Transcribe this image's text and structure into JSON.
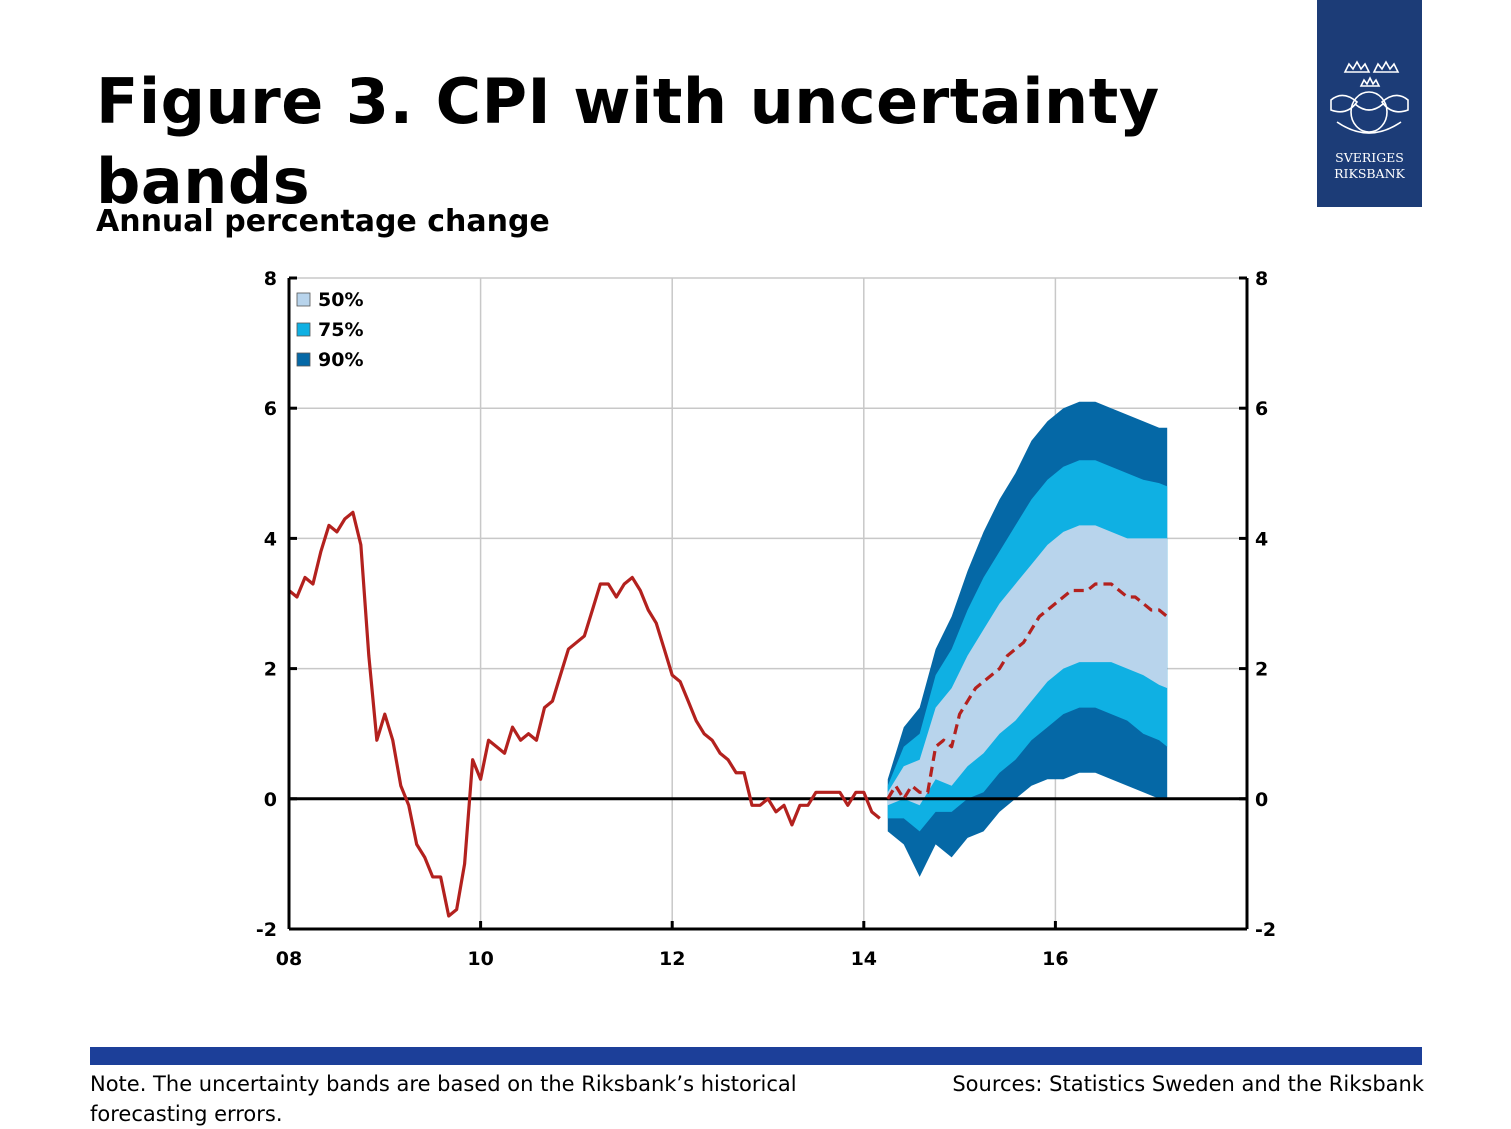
{
  "header": {
    "title": "Figure 3. CPI with uncertainty bands",
    "subtitle": "Annual percentage change"
  },
  "logo": {
    "line1": "SVERIGES",
    "line2": "RIKSBANK",
    "color": "#1c3c77"
  },
  "footer": {
    "note": "Note. The uncertainty bands are based on the Riksbank’s historical forecasting errors.",
    "sources": "Sources: Statistics Sweden and the Riksbank",
    "bar_color": "#1c3f99"
  },
  "chart_data": {
    "type": "area",
    "title": "",
    "xlabel": "",
    "ylabel": "",
    "xlim": [
      2008,
      2018
    ],
    "ylim": [
      -2,
      8
    ],
    "x_ticks": [
      2008,
      2010,
      2012,
      2014,
      2016
    ],
    "x_tick_labels": [
      "08",
      "10",
      "12",
      "14",
      "16"
    ],
    "y_ticks": [
      -2,
      0,
      2,
      4,
      6,
      8
    ],
    "y_tick_labels": [
      "-2",
      "0",
      "2",
      "4",
      "6",
      "8"
    ],
    "y_axis_right": true,
    "grid": true,
    "legend_position": "top-left",
    "legend": [
      {
        "label": "50%",
        "color": "#b8d4ec"
      },
      {
        "label": "75%",
        "color": "#0fb0e3"
      },
      {
        "label": "90%",
        "color": "#0568a6"
      }
    ],
    "series": [
      {
        "style": "solid",
        "color": "#b3211e",
        "x": [
          2008.0,
          2008.083,
          2008.167,
          2008.25,
          2008.333,
          2008.417,
          2008.5,
          2008.583,
          2008.667,
          2008.75,
          2008.833,
          2008.917,
          2009.0,
          2009.083,
          2009.167,
          2009.25,
          2009.333,
          2009.417,
          2009.5,
          2009.583,
          2009.667,
          2009.75,
          2009.833,
          2009.917,
          2010.0,
          2010.083,
          2010.167,
          2010.25,
          2010.333,
          2010.417,
          2010.5,
          2010.583,
          2010.667,
          2010.75,
          2010.833,
          2010.917,
          2011.0,
          2011.083,
          2011.167,
          2011.25,
          2011.333,
          2011.417,
          2011.5,
          2011.583,
          2011.667,
          2011.75,
          2011.833,
          2011.917,
          2012.0,
          2012.083,
          2012.167,
          2012.25,
          2012.333,
          2012.417,
          2012.5,
          2012.583,
          2012.667,
          2012.75,
          2012.833,
          2012.917,
          2013.0,
          2013.083,
          2013.167,
          2013.25,
          2013.333,
          2013.417,
          2013.5,
          2013.583,
          2013.667,
          2013.75,
          2013.833,
          2013.917,
          2014.0,
          2014.083,
          2014.167
        ],
        "y": [
          3.2,
          3.1,
          3.4,
          3.3,
          3.8,
          4.2,
          4.1,
          4.3,
          4.4,
          3.9,
          2.2,
          0.9,
          1.3,
          0.9,
          0.2,
          -0.1,
          -0.7,
          -0.9,
          -1.2,
          -1.2,
          -1.8,
          -1.7,
          -1.0,
          0.6,
          0.3,
          0.9,
          0.8,
          0.7,
          1.1,
          0.9,
          1.0,
          0.9,
          1.4,
          1.5,
          1.9,
          2.3,
          2.4,
          2.5,
          2.9,
          3.3,
          3.3,
          3.1,
          3.3,
          3.4,
          3.2,
          2.9,
          2.7,
          2.3,
          1.9,
          1.8,
          1.5,
          1.2,
          1.0,
          0.9,
          0.7,
          0.6,
          0.4,
          0.4,
          -0.1,
          -0.1,
          0.0,
          -0.2,
          -0.1,
          -0.4,
          -0.1,
          -0.1,
          0.1,
          0.1,
          0.1,
          0.1,
          -0.1,
          0.1,
          0.1,
          -0.2,
          -0.3
        ]
      },
      {
        "style": "dashed",
        "color": "#b3211e",
        "x": [
          2014.25,
          2014.333,
          2014.417,
          2014.5,
          2014.583,
          2014.667,
          2014.75,
          2014.833,
          2014.917,
          2015.0,
          2015.083,
          2015.167,
          2015.25,
          2015.333,
          2015.417,
          2015.5,
          2015.583,
          2015.667,
          2015.75,
          2015.833,
          2015.917,
          2016.0,
          2016.083,
          2016.167,
          2016.25,
          2016.333,
          2016.417,
          2016.5,
          2016.583,
          2016.667,
          2016.75,
          2016.833,
          2016.917,
          2017.0,
          2017.083,
          2017.167
        ],
        "y": [
          0.0,
          0.2,
          0.0,
          0.2,
          0.1,
          0.1,
          0.8,
          0.9,
          0.8,
          1.3,
          1.5,
          1.7,
          1.8,
          1.9,
          2.0,
          2.2,
          2.3,
          2.4,
          2.6,
          2.8,
          2.9,
          3.0,
          3.1,
          3.2,
          3.2,
          3.2,
          3.3,
          3.3,
          3.3,
          3.2,
          3.1,
          3.1,
          3.0,
          2.9,
          2.9,
          2.8
        ]
      }
    ],
    "bands": {
      "x": [
        2014.25,
        2014.417,
        2014.583,
        2014.75,
        2014.917,
        2015.083,
        2015.25,
        2015.417,
        2015.583,
        2015.75,
        2015.917,
        2016.083,
        2016.25,
        2016.417,
        2016.583,
        2016.75,
        2016.917,
        2017.083,
        2017.167
      ],
      "p90_upper": [
        0.3,
        1.1,
        1.4,
        2.3,
        2.8,
        3.5,
        4.1,
        4.6,
        5.0,
        5.5,
        5.8,
        6.0,
        6.1,
        6.1,
        6.0,
        5.9,
        5.8,
        5.7,
        5.7
      ],
      "p75_upper": [
        0.2,
        0.8,
        1.0,
        1.9,
        2.3,
        2.9,
        3.4,
        3.8,
        4.2,
        4.6,
        4.9,
        5.1,
        5.2,
        5.2,
        5.1,
        5.0,
        4.9,
        4.85,
        4.8
      ],
      "p50_upper": [
        0.1,
        0.5,
        0.6,
        1.4,
        1.7,
        2.2,
        2.6,
        3.0,
        3.3,
        3.6,
        3.9,
        4.1,
        4.2,
        4.2,
        4.1,
        4.0,
        4.0,
        4.0,
        4.0
      ],
      "p50_lower": [
        -0.1,
        0.0,
        -0.1,
        0.3,
        0.2,
        0.5,
        0.7,
        1.0,
        1.2,
        1.5,
        1.8,
        2.0,
        2.1,
        2.1,
        2.1,
        2.0,
        1.9,
        1.75,
        1.7
      ],
      "p75_lower": [
        -0.3,
        -0.3,
        -0.5,
        -0.2,
        -0.2,
        0.0,
        0.1,
        0.4,
        0.6,
        0.9,
        1.1,
        1.3,
        1.4,
        1.4,
        1.3,
        1.2,
        1.0,
        0.9,
        0.8
      ],
      "p90_lower": [
        -0.5,
        -0.7,
        -1.2,
        -0.7,
        -0.9,
        -0.6,
        -0.5,
        -0.2,
        0.0,
        0.2,
        0.3,
        0.3,
        0.4,
        0.4,
        0.3,
        0.2,
        0.1,
        0.0,
        0.0
      ]
    },
    "reference_line": 0
  }
}
